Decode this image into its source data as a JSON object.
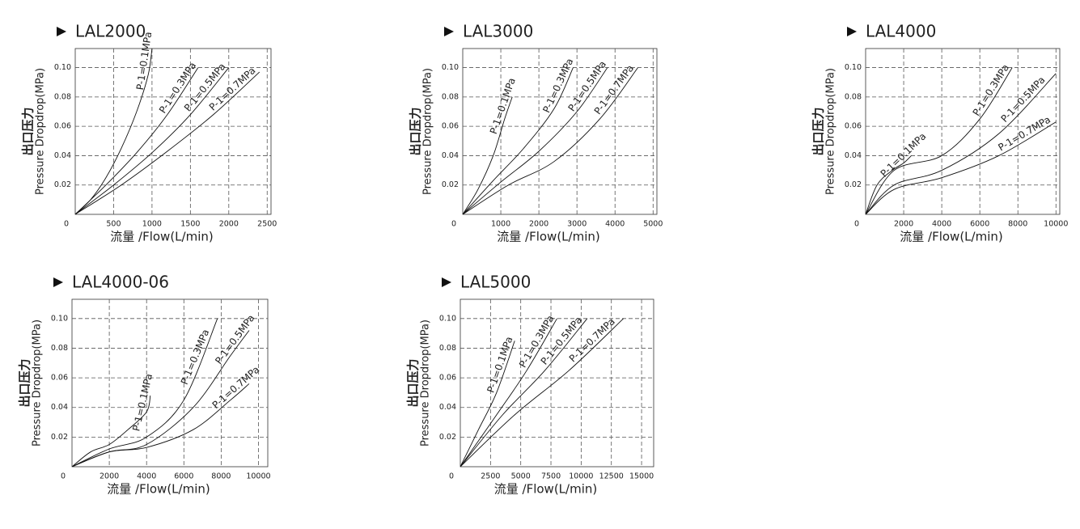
{
  "chart_data": [
    {
      "type": "line",
      "title": "LAL2000",
      "ylabel_cn": "出口压力",
      "ylabel": "Pressure Dropdrop(MPa)",
      "xlabel": "流量 /Flow(L/min)",
      "xlim": [
        0,
        2550
      ],
      "ylim": [
        0,
        0.113
      ],
      "xticks": [
        0,
        500,
        1000,
        1500,
        2000,
        2500
      ],
      "yticks": [
        0.02,
        0.04,
        0.06,
        0.08,
        {
          "value": 0.1,
          "label": "0.10"
        }
      ],
      "grid": true,
      "series": [
        {
          "name": "P-1=0.1MPa",
          "color": "#111111",
          "x": [
            0,
            200,
            400,
            600,
            800,
            950,
            1000
          ],
          "values": [
            0,
            0.01,
            0.025,
            0.045,
            0.07,
            0.095,
            0.113
          ]
        },
        {
          "name": "P-1=0.3MPa",
          "color": "#111111",
          "x": [
            0,
            400,
            800,
            1200,
            1600
          ],
          "values": [
            0,
            0.02,
            0.042,
            0.068,
            0.1
          ]
        },
        {
          "name": "P-1=0.5MPa",
          "color": "#111111",
          "x": [
            0,
            500,
            1000,
            1500,
            2000
          ],
          "values": [
            0,
            0.02,
            0.042,
            0.068,
            0.1
          ]
        },
        {
          "name": "P-1=0.7MPa",
          "color": "#111111",
          "x": [
            0,
            600,
            1200,
            1800,
            2400
          ],
          "values": [
            0,
            0.02,
            0.043,
            0.068,
            0.097
          ]
        }
      ]
    },
    {
      "type": "line",
      "title": "LAL3000",
      "ylabel_cn": "出口压力",
      "ylabel": "Pressure Dropdrop(MPa)",
      "xlabel": "流量 /Flow(L/min)",
      "xlim": [
        0,
        5100
      ],
      "ylim": [
        0,
        0.113
      ],
      "xticks": [
        0,
        1000,
        2000,
        3000,
        4000,
        5000
      ],
      "yticks": [
        0.02,
        0.04,
        0.06,
        0.08,
        {
          "value": 0.1,
          "label": "0.10"
        }
      ],
      "grid": true,
      "series": [
        {
          "name": "P-1=0.1MPa",
          "color": "#111111",
          "x": [
            0,
            400,
            800,
            1100,
            1300
          ],
          "values": [
            0,
            0.017,
            0.04,
            0.065,
            0.08
          ]
        },
        {
          "name": "P-1=0.3MPa",
          "color": "#111111",
          "x": [
            0,
            800,
            1600,
            2400,
            2900
          ],
          "values": [
            0,
            0.023,
            0.045,
            0.072,
            0.1
          ]
        },
        {
          "name": "P-1=0.5MPa",
          "color": "#111111",
          "x": [
            0,
            1000,
            2000,
            3000,
            3800
          ],
          "values": [
            0,
            0.022,
            0.043,
            0.07,
            0.1
          ]
        },
        {
          "name": "P-1=0.7MPa",
          "color": "#111111",
          "x": [
            0,
            1200,
            2400,
            3600,
            4600
          ],
          "values": [
            0,
            0.02,
            0.036,
            0.065,
            0.1
          ]
        }
      ]
    },
    {
      "type": "line",
      "title": "LAL4000",
      "ylabel_cn": "出口压力",
      "ylabel": "Pressure Dropdrop(MPa)",
      "xlabel": "流量 /Flow(L/min)",
      "xlim": [
        0,
        10200
      ],
      "ylim": [
        0,
        0.113
      ],
      "xticks": [
        0,
        2000,
        4000,
        6000,
        8000,
        10000
      ],
      "yticks": [
        0.02,
        0.04,
        0.06,
        0.08,
        {
          "value": 0.1,
          "label": "0.10"
        }
      ],
      "grid": true,
      "series": [
        {
          "name": "P-1=0.1MPa",
          "color": "#111111",
          "x": [
            0,
            600,
            1400,
            2000,
            2400
          ],
          "values": [
            0,
            0.02,
            0.03,
            0.035,
            0.04
          ]
        },
        {
          "name": "P-1=0.3MPa",
          "color": "#111111",
          "x": [
            0,
            1500,
            4000,
            6000,
            7700
          ],
          "values": [
            0,
            0.03,
            0.04,
            0.065,
            0.1
          ]
        },
        {
          "name": "P-1=0.5MPa",
          "color": "#111111",
          "x": [
            0,
            1500,
            4000,
            7000,
            10000
          ],
          "values": [
            0,
            0.02,
            0.03,
            0.055,
            0.096
          ]
        },
        {
          "name": "P-1=0.7MPa",
          "color": "#111111",
          "x": [
            0,
            1500,
            4000,
            7000,
            10000
          ],
          "values": [
            0,
            0.017,
            0.025,
            0.04,
            0.063
          ]
        }
      ]
    },
    {
      "type": "line",
      "title": "LAL4000-06",
      "ylabel_cn": "出口压力",
      "ylabel": "Pressure Dropdrop(MPa)",
      "xlabel": "流量 /Flow(L/min)",
      "xlim": [
        0,
        10500
      ],
      "ylim": [
        0,
        0.113
      ],
      "xticks": [
        0,
        2000,
        4000,
        6000,
        8000,
        10000
      ],
      "yticks": [
        0.02,
        0.04,
        0.06,
        0.08,
        {
          "value": 0.1,
          "label": "0.10"
        }
      ],
      "grid": true,
      "series": [
        {
          "name": "P-1=0.1MPa",
          "color": "#111111",
          "x": [
            0,
            1000,
            2000,
            3000,
            4000,
            4200
          ],
          "values": [
            0,
            0.01,
            0.015,
            0.025,
            0.037,
            0.048
          ]
        },
        {
          "name": "P-1=0.3MPa",
          "color": "#111111",
          "x": [
            0,
            2000,
            4000,
            6000,
            7800
          ],
          "values": [
            0,
            0.012,
            0.02,
            0.045,
            0.1
          ]
        },
        {
          "name": "P-1=0.5MPa",
          "color": "#111111",
          "x": [
            0,
            2000,
            4000,
            6500,
            8500,
            9500
          ],
          "values": [
            0,
            0.01,
            0.015,
            0.04,
            0.075,
            0.092
          ]
        },
        {
          "name": "P-1=0.7MPa",
          "color": "#111111",
          "x": [
            0,
            2000,
            4000,
            6500,
            8500,
            9500
          ],
          "values": [
            0,
            0.01,
            0.013,
            0.025,
            0.045,
            0.056
          ]
        }
      ]
    },
    {
      "type": "line",
      "title": "LAL5000",
      "ylabel_cn": "出口压力",
      "ylabel": "Pressure Dropdrop(MPa)",
      "xlabel": "流量 /Flow(L/min)",
      "xlim": [
        0,
        16000
      ],
      "ylim": [
        0,
        0.113
      ],
      "xticks": [
        0,
        2500,
        5000,
        7500,
        10000,
        12500,
        15000
      ],
      "yticks": [
        0.02,
        0.04,
        0.06,
        0.08,
        {
          "value": 0.1,
          "label": "0.10"
        }
      ],
      "grid": true,
      "series": [
        {
          "name": "P-1=0.1MPa",
          "color": "#111111",
          "x": [
            0,
            1500,
            3000,
            4500
          ],
          "values": [
            0,
            0.025,
            0.05,
            0.085
          ]
        },
        {
          "name": "P-1=0.3MPa",
          "color": "#111111",
          "x": [
            0,
            3000,
            5500,
            8000
          ],
          "values": [
            0,
            0.035,
            0.065,
            0.1
          ]
        },
        {
          "name": "P-1=0.5MPa",
          "color": "#111111",
          "x": [
            0,
            3500,
            7000,
            10500
          ],
          "values": [
            0,
            0.035,
            0.065,
            0.1
          ]
        },
        {
          "name": "P-1=0.7MPa",
          "color": "#111111",
          "x": [
            0,
            4500,
            9000,
            13500
          ],
          "values": [
            0,
            0.035,
            0.065,
            0.1
          ]
        }
      ]
    }
  ]
}
